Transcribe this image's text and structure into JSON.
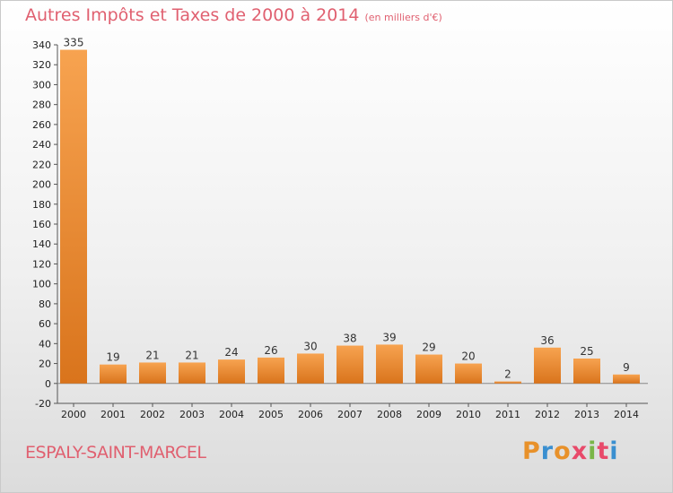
{
  "title": "Autres Impôts et Taxes de 2000 à 2014",
  "unit_label": "(en milliers d'€)",
  "place": "ESPALY-SAINT-MARCEL",
  "logo": {
    "letters": [
      "P",
      "r",
      "o",
      "x",
      "i",
      "t",
      "i"
    ],
    "colors": [
      "#e8912a",
      "#3a8fd0",
      "#e8912a",
      "#e84a6a",
      "#7ab648",
      "#e84a6a",
      "#3a8fd0"
    ]
  },
  "colors": {
    "bar_top": "#f7a350",
    "bar_bottom": "#d9741c",
    "title": "#e06070"
  },
  "chart_data": {
    "type": "bar",
    "categories": [
      "2000",
      "2001",
      "2002",
      "2003",
      "2004",
      "2005",
      "2006",
      "2007",
      "2008",
      "2009",
      "2010",
      "2011",
      "2012",
      "2013",
      "2014"
    ],
    "values": [
      335,
      19,
      21,
      21,
      24,
      26,
      30,
      38,
      39,
      29,
      20,
      2,
      36,
      25,
      9
    ],
    "yticks": [
      -20,
      0,
      20,
      40,
      60,
      80,
      100,
      120,
      140,
      160,
      180,
      200,
      220,
      240,
      260,
      280,
      300,
      320,
      340
    ],
    "ylim": [
      -20,
      340
    ],
    "grid": false,
    "xlabel": "",
    "ylabel": ""
  }
}
